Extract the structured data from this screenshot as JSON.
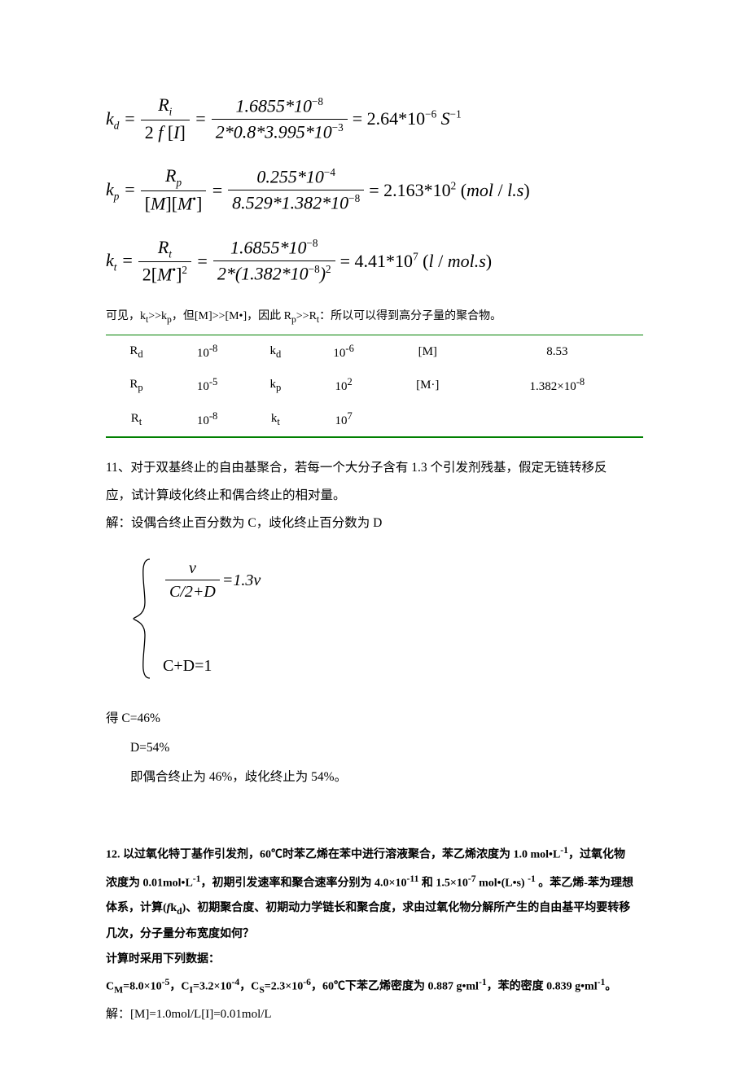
{
  "eq_kd": {
    "lhs": "k",
    "lhs_sub": "d",
    "frac1_num_html": "R<span class=\"sub\">i</span>",
    "frac1_den_html": "<span class=\"rm\">2</span> f <span class=\"rm\">[</span>I<span class=\"rm\">]</span>",
    "frac2_num": "1.6855*10",
    "frac2_num_sup": "−8",
    "frac2_den": "2*0.8*3.995*10",
    "frac2_den_sup": "−3",
    "rhs_val": "= 2.64*10",
    "rhs_sup": "−6",
    "rhs_unit_html": "S<span class=\"sup\">−1</span>"
  },
  "eq_kp": {
    "lhs": "k",
    "lhs_sub": "p",
    "frac1_num_html": "R<span class=\"sub\">p</span>",
    "frac1_den_html": "<span class=\"rm\">[</span>M<span class=\"rm\">][</span>M<span class=\"sup\">•</span><span class=\"rm\">]</span>",
    "frac2_num": "0.255*10",
    "frac2_num_sup": "−4",
    "frac2_den": "8.529*1.382*10",
    "frac2_den_sup": "−8",
    "rhs_val": "= 2.163*10",
    "rhs_sup": "2",
    "rhs_unit_html": "<span class=\"rm\">(</span>mol <span class=\"rm\">/</span> l.s<span class=\"rm\">)</span>"
  },
  "eq_kt": {
    "lhs": "k",
    "lhs_sub": "t",
    "frac1_num_html": "R<span class=\"sub\">t</span>",
    "frac1_den_html": "<span class=\"rm\">2[</span>M<span class=\"sup\">•</span><span class=\"rm\">]</span><span class=\"sup\">2</span>",
    "frac2_num": "1.6855*10",
    "frac2_num_sup": "−8",
    "frac2_den_a": "2*(1.382*10",
    "frac2_den_sup": "−8",
    "frac2_den_b": ")",
    "frac2_den_outer_sup": "2",
    "rhs_val": "= 4.41*10",
    "rhs_sup": "7",
    "rhs_unit_html": "<span class=\"rm\">(</span>l <span class=\"rm\">/</span> mol.s<span class=\"rm\">)</span>"
  },
  "note_line": "可见，k<sub>t</sub>>>k<sub>p</sub>，但[M]>>[M•]，因此 R<sub>p</sub>>>R<sub>t</sub>：所以可以得到高分子量的聚合物。",
  "table": {
    "rows": [
      [
        "R<sub>d</sub>",
        "10<sup>-8</sup>",
        "k<sub>d</sub>",
        "10<sup>-6</sup>",
        "[M]",
        "8.53"
      ],
      [
        "R<sub>p</sub>",
        "10<sup>-5</sup>",
        "k<sub>p</sub>",
        "10<sup>2</sup>",
        "[M·]",
        "1.382×10<sup>-8</sup>"
      ],
      [
        "R<sub>t</sub>",
        "10<sup>-8</sup>",
        "k<sub>t</sub>",
        "10<sup>7</sup>",
        "",
        ""
      ]
    ],
    "border_color": "#008000"
  },
  "q11": {
    "text1": "11、对于双基终止的自由基聚合，若每一个大分子含有 1.3 个引发剂残基，假定无链转移反",
    "text2": "应，试计算歧化终止和偶合终止的相对量。",
    "sol_label": "解：",
    "sol_text": "设偶合终止百分数为 C，歧化终止百分数为 D",
    "eq_num": "ν",
    "eq_den": "C/2+D",
    "eq_rhs": "=1.3ν",
    "eq2": "C+D=1",
    "res1": "得 C=46%",
    "res2": "D=54%",
    "res3": "即偶合终止为 46%，歧化终止为 54%。"
  },
  "q12": {
    "line1": "12. 以过氧化特丁基作引发剂，60℃时苯乙烯在苯中进行溶液聚合，苯乙烯浓度为 1.0 mol•L<sup>-1</sup>，过氧化物",
    "line2": "浓度为 0.01mol•L<sup>-1</sup>，初期引发速率和聚合速率分别为 4.0×10<sup>-11</sup> 和 1.5×10<sup>-7</sup> mol•(L•s) <sup>-1</sup> 。苯乙烯-苯为理想",
    "line3": "体系，计算(<span style=\"font-style:italic\">f</span>k<sub>d</sub>)、初期聚合度、初期动力学链长和聚合度，求由过氧化物分解所产生的自由基平均要转移",
    "line4": "几次，分子量分布宽度如何？",
    "data_label": "计算时采用下列数据：",
    "data_line": "C<sub>M</sub>=8.0×10<sup>-5</sup>，C<sub>I</sub>=3.2×10<sup>-4</sup>，C<sub>S</sub>=2.3×10<sup>-6</sup>，60℃下苯乙烯密度为 0.887 g•ml<sup>-1</sup>，苯的密度 0.839 g•ml<sup>-1</sup>。",
    "sol": "解：[M]=1.0mol/L[I]=0.01mol/L"
  }
}
